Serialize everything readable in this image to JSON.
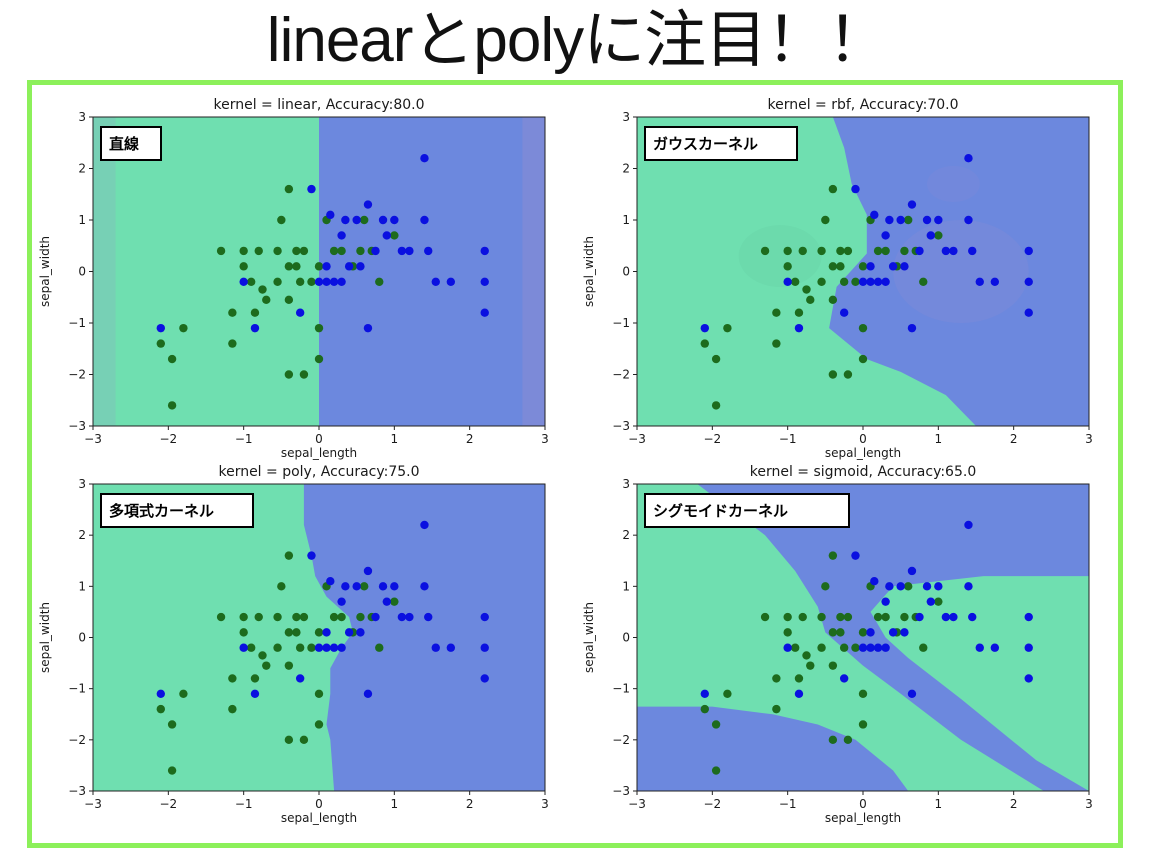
{
  "slide": {
    "title": "linearとpolyに注目！！"
  },
  "colors": {
    "green_region": "#6fdfb0",
    "blue_region": "#6c88de",
    "green_point": "#1d6b1d",
    "blue_point": "#0a10e0",
    "frame": "#8cf05a",
    "purple_tint": "#9a8fcf"
  },
  "chart_data": [
    {
      "type": "scatter",
      "kernel": "linear",
      "title": "kernel = linear, Accuracy:80.0",
      "badge": "直線",
      "xlabel": "sepal_length",
      "ylabel": "sepal_width",
      "xlim": [
        -3,
        3
      ],
      "ylim": [
        -3,
        3
      ],
      "xticks": [
        "−3",
        "−2",
        "−1",
        "0",
        "1",
        "2",
        "3"
      ],
      "yticks": [
        "3",
        "2",
        "1",
        "0",
        "−1",
        "−2",
        "−3"
      ]
    },
    {
      "type": "scatter",
      "kernel": "rbf",
      "title": "kernel = rbf, Accuracy:70.0",
      "badge": "ガウスカーネル",
      "xlabel": "sepal_length",
      "ylabel": "sepal_width",
      "xlim": [
        -3,
        3
      ],
      "ylim": [
        -3,
        3
      ],
      "xticks": [
        "−3",
        "−2",
        "−1",
        "0",
        "1",
        "2",
        "3"
      ],
      "yticks": [
        "3",
        "2",
        "1",
        "0",
        "−1",
        "−2",
        "−3"
      ]
    },
    {
      "type": "scatter",
      "kernel": "poly",
      "title": "kernel = poly, Accuracy:75.0",
      "badge": "多項式カーネル",
      "xlabel": "sepal_length",
      "ylabel": "sepal_width",
      "xlim": [
        -3,
        3
      ],
      "ylim": [
        -3,
        3
      ],
      "xticks": [
        "−3",
        "−2",
        "−1",
        "0",
        "1",
        "2",
        "3"
      ],
      "yticks": [
        "3",
        "2",
        "1",
        "0",
        "−1",
        "−2",
        "−3"
      ]
    },
    {
      "type": "scatter",
      "kernel": "sigmoid",
      "title": "kernel = sigmoid, Accuracy:65.0",
      "badge": "シグモイドカーネル",
      "xlabel": "sepal_length",
      "ylabel": "sepal_width",
      "xlim": [
        -3,
        3
      ],
      "ylim": [
        -3,
        3
      ],
      "xticks": [
        "−3",
        "−2",
        "−1",
        "0",
        "1",
        "2",
        "3"
      ],
      "yticks": [
        "3",
        "2",
        "1",
        "0",
        "−1",
        "−2",
        "−3"
      ]
    }
  ],
  "points": {
    "green": [
      [
        -2.1,
        -1.4
      ],
      [
        -1.95,
        -1.7
      ],
      [
        -1.95,
        -2.6
      ],
      [
        -1.8,
        -1.1
      ],
      [
        -1.3,
        0.4
      ],
      [
        -1.15,
        -0.8
      ],
      [
        -1.15,
        -1.4
      ],
      [
        -1.0,
        0.4
      ],
      [
        -1.0,
        0.1
      ],
      [
        -0.9,
        -0.2
      ],
      [
        -0.85,
        -0.8
      ],
      [
        -0.8,
        0.4
      ],
      [
        -0.75,
        -0.35
      ],
      [
        -0.7,
        -0.55
      ],
      [
        -0.55,
        0.4
      ],
      [
        -0.55,
        -0.2
      ],
      [
        -0.5,
        1.0
      ],
      [
        -0.4,
        1.6
      ],
      [
        -0.4,
        0.1
      ],
      [
        -0.4,
        -0.55
      ],
      [
        -0.4,
        -2.0
      ],
      [
        -0.3,
        0.4
      ],
      [
        -0.3,
        0.1
      ],
      [
        -0.25,
        -0.2
      ],
      [
        -0.2,
        0.4
      ],
      [
        -0.2,
        -2.0
      ],
      [
        -0.1,
        -0.2
      ],
      [
        0.0,
        0.1
      ],
      [
        0.0,
        -1.1
      ],
      [
        0.0,
        -1.7
      ],
      [
        0.1,
        1.0
      ],
      [
        0.2,
        0.4
      ],
      [
        0.3,
        0.4
      ],
      [
        0.45,
        0.1
      ],
      [
        0.55,
        0.4
      ],
      [
        0.6,
        1.0
      ],
      [
        0.7,
        0.4
      ],
      [
        0.8,
        -0.2
      ],
      [
        1.0,
        0.7
      ]
    ],
    "blue": [
      [
        -2.1,
        -1.1
      ],
      [
        -1.0,
        -0.2
      ],
      [
        -0.85,
        -1.1
      ],
      [
        -0.25,
        -0.8
      ],
      [
        -0.1,
        1.6
      ],
      [
        0.0,
        -0.2
      ],
      [
        0.1,
        -0.2
      ],
      [
        0.1,
        0.1
      ],
      [
        0.15,
        1.1
      ],
      [
        0.2,
        -0.2
      ],
      [
        0.3,
        -0.2
      ],
      [
        0.3,
        0.7
      ],
      [
        0.35,
        1.0
      ],
      [
        0.4,
        0.1
      ],
      [
        0.5,
        1.0
      ],
      [
        0.55,
        0.1
      ],
      [
        0.65,
        1.3
      ],
      [
        0.65,
        -1.1
      ],
      [
        0.75,
        0.4
      ],
      [
        0.85,
        1.0
      ],
      [
        0.9,
        0.7
      ],
      [
        1.0,
        1.0
      ],
      [
        1.1,
        0.4
      ],
      [
        1.2,
        0.4
      ],
      [
        1.4,
        2.2
      ],
      [
        1.4,
        1.0
      ],
      [
        1.45,
        0.4
      ],
      [
        1.55,
        -0.2
      ],
      [
        1.75,
        -0.2
      ],
      [
        2.2,
        0.4
      ],
      [
        2.2,
        -0.2
      ],
      [
        2.2,
        -0.8
      ]
    ]
  }
}
